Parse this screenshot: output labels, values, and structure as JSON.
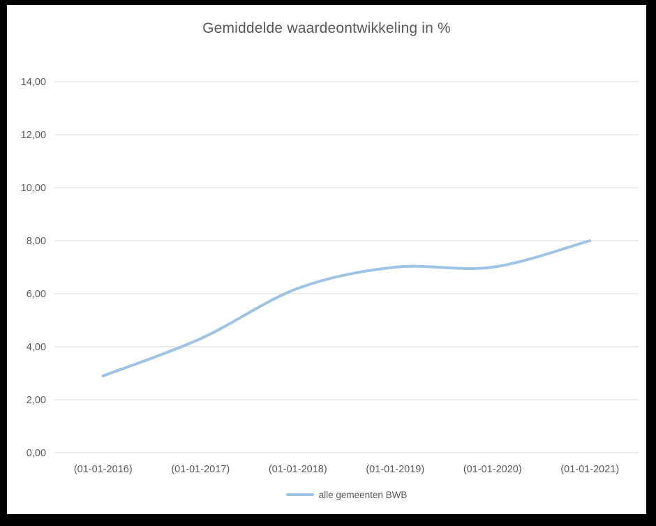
{
  "title": "Gemiddelde waardeontwikkeling in %",
  "legend": {
    "label": "alle gemeenten BWB"
  },
  "colors": {
    "line": "#9DC3E6",
    "gridline": "#D9D9D9",
    "text": "#595959",
    "frame": "#000000",
    "background": "#FFFFFF"
  },
  "chart_data": {
    "type": "line",
    "title": "Gemiddelde waardeontwikkeling in %",
    "categories": [
      "(01-01-2016)",
      "(01-01-2017)",
      "(01-01-2018)",
      "(01-01-2019)",
      "(01-01-2020)",
      "(01-01-2021)"
    ],
    "series": [
      {
        "name": "alle gemeenten BWB",
        "values": [
          2.9,
          4.3,
          6.2,
          7.0,
          7.0,
          8.0
        ]
      }
    ],
    "xlabel": "",
    "ylabel": "",
    "ylim": [
      0,
      14
    ],
    "ytick_step": 2,
    "ytick_labels": [
      "0,00",
      "2,00",
      "4,00",
      "6,00",
      "8,00",
      "10,00",
      "12,00",
      "14,00"
    ],
    "grid": true,
    "smooth": true,
    "legend_position": "bottom"
  }
}
